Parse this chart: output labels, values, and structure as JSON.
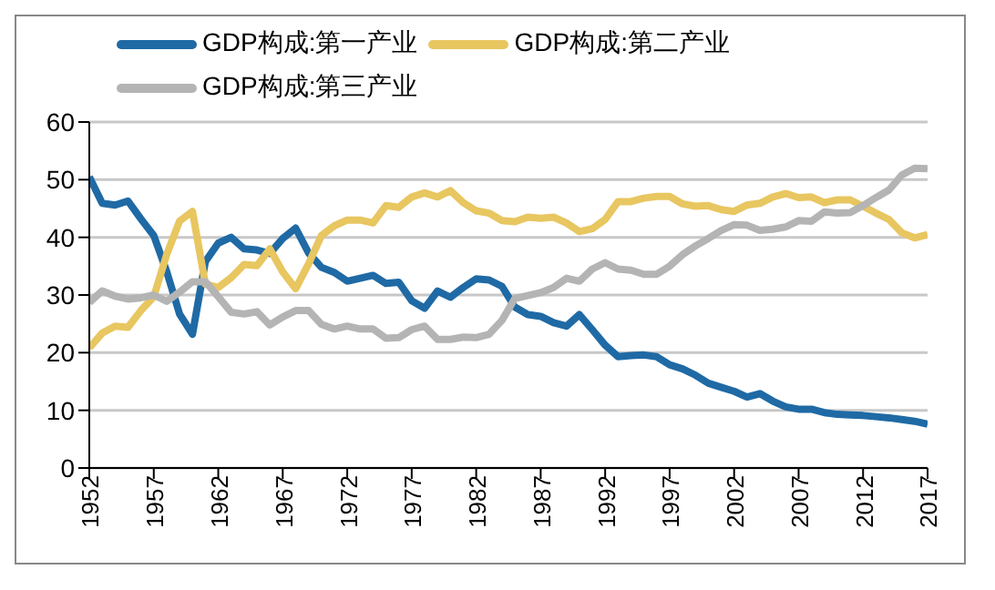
{
  "chart_data": {
    "type": "line",
    "x": [
      1952,
      1953,
      1954,
      1955,
      1956,
      1957,
      1958,
      1959,
      1960,
      1961,
      1962,
      1963,
      1964,
      1965,
      1966,
      1967,
      1968,
      1969,
      1970,
      1971,
      1972,
      1973,
      1974,
      1975,
      1976,
      1977,
      1978,
      1979,
      1980,
      1981,
      1982,
      1983,
      1984,
      1985,
      1986,
      1987,
      1988,
      1989,
      1990,
      1991,
      1992,
      1993,
      1994,
      1995,
      1996,
      1997,
      1998,
      1999,
      2000,
      2001,
      2002,
      2003,
      2004,
      2005,
      2006,
      2007,
      2008,
      2009,
      2010,
      2011,
      2012,
      2013,
      2014,
      2015,
      2016,
      2017
    ],
    "series": [
      {
        "name": "GDP构成:第一产业",
        "color": "#1f6aa5",
        "values": [
          50.5,
          45.9,
          45.6,
          46.3,
          43.2,
          40.3,
          34.1,
          26.7,
          23.2,
          35.8,
          39.0,
          40.0,
          38.0,
          37.8,
          37.2,
          39.8,
          41.6,
          37.3,
          34.8,
          33.9,
          32.4,
          32.9,
          33.4,
          32.0,
          32.2,
          29.0,
          27.7,
          30.7,
          29.6,
          31.3,
          32.8,
          32.6,
          31.5,
          27.9,
          26.6,
          26.3,
          25.2,
          24.6,
          26.6,
          24.0,
          21.3,
          19.3,
          19.5,
          19.6,
          19.3,
          17.9,
          17.2,
          16.1,
          14.7,
          14.0,
          13.3,
          12.3,
          12.9,
          11.6,
          10.6,
          10.2,
          10.2,
          9.6,
          9.3,
          9.2,
          9.1,
          8.9,
          8.7,
          8.4,
          8.1,
          7.6
        ]
      },
      {
        "name": "GDP构成:第二产业",
        "color": "#e8c660",
        "values": [
          20.8,
          23.4,
          24.6,
          24.4,
          27.3,
          29.7,
          37.0,
          42.8,
          44.5,
          31.9,
          31.3,
          33.0,
          35.3,
          35.1,
          38.0,
          34.0,
          31.1,
          35.4,
          40.3,
          42.0,
          43.0,
          43.0,
          42.5,
          45.5,
          45.2,
          47.0,
          47.7,
          47.0,
          48.1,
          46.0,
          44.6,
          44.2,
          42.9,
          42.7,
          43.5,
          43.3,
          43.5,
          42.5,
          41.0,
          41.5,
          43.1,
          46.2,
          46.2,
          46.8,
          47.1,
          47.1,
          45.8,
          45.4,
          45.5,
          44.8,
          44.5,
          45.6,
          45.9,
          47.0,
          47.6,
          46.9,
          47.0,
          46.0,
          46.5,
          46.5,
          45.4,
          44.2,
          43.1,
          40.8,
          39.9,
          40.5
        ]
      },
      {
        "name": "GDP构成:第三产业",
        "color": "#b4b4b4",
        "values": [
          28.7,
          30.7,
          29.8,
          29.3,
          29.5,
          30.0,
          28.9,
          30.5,
          32.3,
          32.3,
          29.7,
          27.0,
          26.7,
          27.1,
          24.8,
          26.2,
          27.3,
          27.3,
          24.9,
          24.1,
          24.6,
          24.1,
          24.1,
          22.5,
          22.6,
          24.0,
          24.6,
          22.3,
          22.3,
          22.7,
          22.6,
          23.2,
          25.6,
          29.4,
          29.9,
          30.4,
          31.3,
          32.9,
          32.4,
          34.5,
          35.6,
          34.5,
          34.3,
          33.6,
          33.6,
          35.0,
          37.0,
          38.5,
          39.8,
          41.2,
          42.2,
          42.1,
          41.2,
          41.4,
          41.8,
          42.9,
          42.8,
          44.4,
          44.2,
          44.3,
          45.5,
          46.9,
          48.2,
          50.8,
          52.0,
          51.9
        ]
      }
    ],
    "xlim": [
      1952,
      2017
    ],
    "xticks": [
      1952,
      1957,
      1962,
      1967,
      1972,
      1977,
      1982,
      1987,
      1992,
      1997,
      2002,
      2007,
      2012,
      2017
    ],
    "ylim": [
      0,
      60
    ],
    "yticks": [
      0,
      10,
      20,
      30,
      40,
      50,
      60
    ],
    "grid": "y",
    "legend": "top",
    "marker": "none",
    "line_style": "solid"
  }
}
